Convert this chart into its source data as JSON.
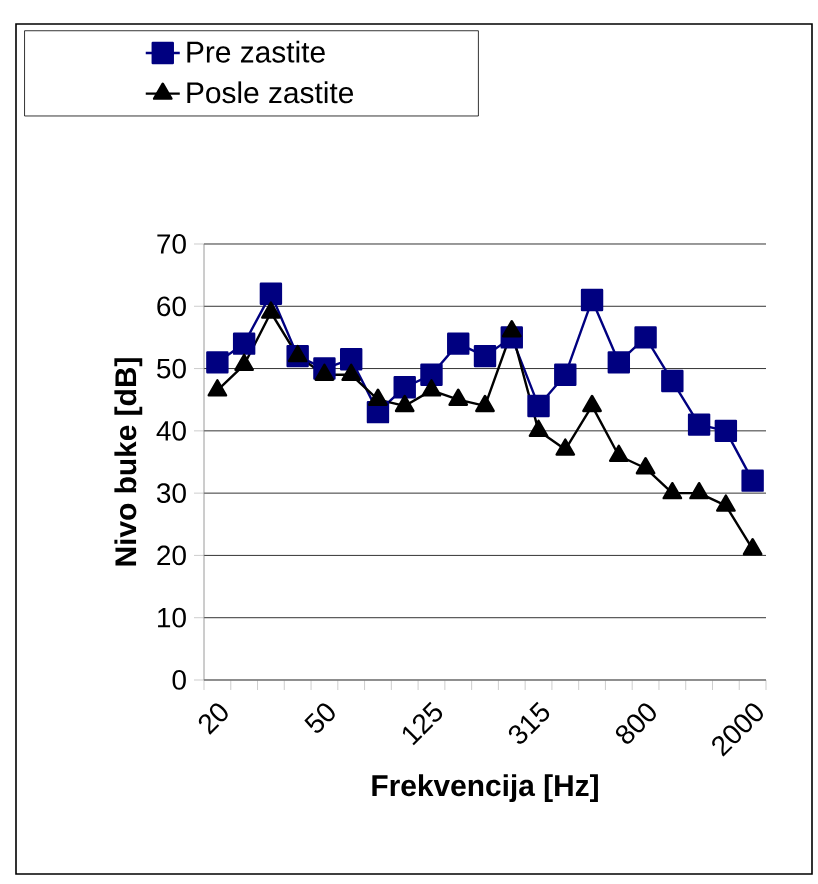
{
  "chart_data": {
    "type": "line",
    "xlabel": "Frekvencija [Hz]",
    "ylabel": "Nivo buke [dB]",
    "categories": [
      "20",
      null,
      null,
      null,
      "50",
      null,
      null,
      null,
      "125",
      null,
      null,
      null,
      "315",
      null,
      null,
      null,
      "800",
      null,
      null,
      null,
      "2000"
    ],
    "series": [
      {
        "name": "Pre zastite",
        "color": "#000080",
        "marker": "square",
        "values": [
          51,
          54,
          62,
          52,
          50,
          51.5,
          43,
          47,
          49,
          54,
          52,
          55,
          44,
          49,
          61,
          51,
          55,
          48,
          41,
          40,
          32
        ]
      },
      {
        "name": "Posle zastite",
        "color": "#000000",
        "marker": "triangle",
        "values": [
          46.5,
          50.6,
          59,
          52,
          49,
          49,
          45,
          44,
          46.5,
          45,
          44,
          56,
          40,
          37,
          44,
          36,
          34,
          30,
          30,
          28,
          21
        ]
      }
    ],
    "ylim": [
      0,
      70
    ],
    "yticks": [
      0,
      10,
      20,
      30,
      40,
      50,
      60,
      70
    ],
    "grid": "y",
    "legend": "top left",
    "line_style": "solid"
  }
}
